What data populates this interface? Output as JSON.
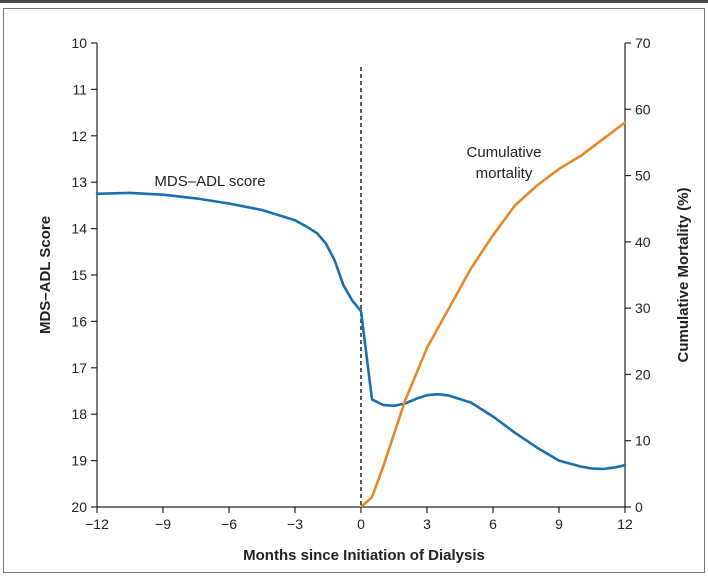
{
  "chart_data": {
    "type": "line",
    "title": "",
    "xlabel": "Months since Initiation of Dialysis",
    "ylabel_left": "MDS–ADL Score",
    "ylabel_right": "Cumulative Mortality (%)",
    "x_ticks": [
      -12,
      -9,
      -6,
      -3,
      0,
      3,
      6,
      9,
      12
    ],
    "x_tick_labels": [
      "−12",
      "−9",
      "−6",
      "−3",
      "0",
      "3",
      "6",
      "9",
      "12"
    ],
    "xlim": [
      -12,
      12
    ],
    "y_left_ticks": [
      10,
      11,
      12,
      13,
      14,
      15,
      16,
      17,
      18,
      19,
      20
    ],
    "y_left_lim": [
      10,
      20
    ],
    "y_left_inverted": true,
    "y_right_ticks": [
      0,
      10,
      20,
      30,
      40,
      50,
      60,
      70
    ],
    "y_right_lim": [
      0,
      70
    ],
    "grid": false,
    "reference_line": {
      "x": 0,
      "style": "dashed"
    },
    "series": [
      {
        "name": "MDS–ADL score",
        "axis": "left",
        "color": "#1b6faf",
        "x": [
          -12,
          -10.5,
          -9,
          -7.5,
          -6,
          -4.5,
          -3,
          -2.5,
          -2,
          -1.6,
          -1.2,
          -0.8,
          -0.4,
          0,
          0.5,
          1,
          1.5,
          2,
          2.5,
          3,
          3.5,
          4,
          5,
          6,
          7,
          8,
          9,
          10,
          10.5,
          11,
          11.5,
          12
        ],
        "values": [
          13.25,
          13.23,
          13.27,
          13.35,
          13.46,
          13.6,
          13.82,
          13.95,
          14.1,
          14.32,
          14.68,
          15.22,
          15.55,
          15.78,
          17.68,
          17.8,
          17.82,
          17.77,
          17.67,
          17.59,
          17.57,
          17.6,
          17.75,
          18.05,
          18.4,
          18.72,
          19.0,
          19.13,
          19.17,
          19.18,
          19.15,
          19.1
        ]
      },
      {
        "name": "Cumulative mortality",
        "axis": "right",
        "color": "#e28a2b",
        "x": [
          0,
          0.5,
          1,
          2,
          3,
          4,
          5,
          6,
          7,
          8,
          9,
          10,
          11,
          12
        ],
        "values": [
          0,
          1.5,
          6,
          16,
          24,
          30,
          36,
          41,
          45.5,
          48.5,
          51,
          53,
          55.5,
          58
        ]
      }
    ],
    "annotations": [
      {
        "text": "MDS–ADL score"
      },
      {
        "text": "Cumulative"
      },
      {
        "text": "mortality"
      }
    ]
  }
}
